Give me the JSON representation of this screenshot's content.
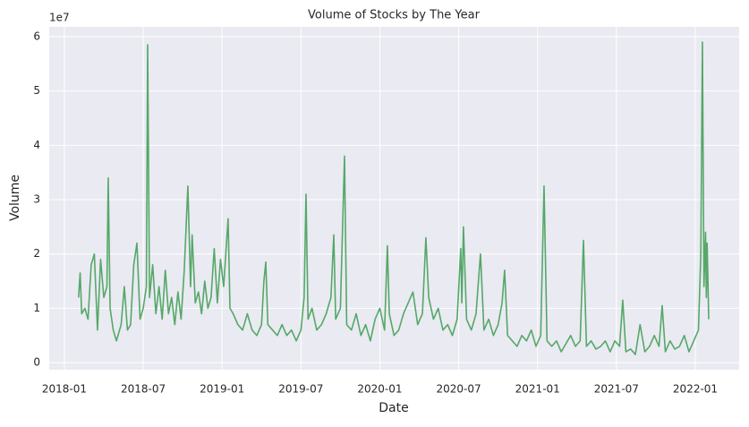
{
  "chart_data": {
    "type": "line",
    "title": "Volume of Stocks by The Year",
    "x_label": "Date",
    "y_label": "Volume",
    "y_offset_label": "1e7",
    "color": "#55a868",
    "grid": true,
    "xlim": [
      2017.904,
      2022.278
    ],
    "ylim": [
      -1300000,
      61800000
    ],
    "xticks": [
      {
        "value": 2018.0,
        "label": "2018-01"
      },
      {
        "value": 2018.5,
        "label": "2018-07"
      },
      {
        "value": 2019.0,
        "label": "2019-01"
      },
      {
        "value": 2019.5,
        "label": "2019-07"
      },
      {
        "value": 2020.0,
        "label": "2020-01"
      },
      {
        "value": 2020.5,
        "label": "2020-07"
      },
      {
        "value": 2021.0,
        "label": "2021-01"
      },
      {
        "value": 2021.5,
        "label": "2021-07"
      },
      {
        "value": 2022.0,
        "label": "2022-01"
      }
    ],
    "yticks": [
      {
        "value": 0,
        "label": "0"
      },
      {
        "value": 10000000,
        "label": "1"
      },
      {
        "value": 20000000,
        "label": "2"
      },
      {
        "value": 30000000,
        "label": "3"
      },
      {
        "value": 40000000,
        "label": "4"
      },
      {
        "value": 50000000,
        "label": "5"
      },
      {
        "value": 60000000,
        "label": "6"
      }
    ],
    "x": [
      2018.09,
      2018.1,
      2018.11,
      2018.13,
      2018.15,
      2018.17,
      2018.19,
      2018.21,
      2018.23,
      2018.25,
      2018.27,
      2018.278,
      2018.29,
      2018.31,
      2018.33,
      2018.36,
      2018.38,
      2018.4,
      2018.42,
      2018.44,
      2018.46,
      2018.48,
      2018.5,
      2018.52,
      2018.528,
      2018.54,
      2018.56,
      2018.58,
      2018.6,
      2018.62,
      2018.64,
      2018.66,
      2018.68,
      2018.7,
      2018.72,
      2018.74,
      2018.76,
      2018.783,
      2018.8,
      2018.81,
      2018.83,
      2018.85,
      2018.87,
      2018.89,
      2018.91,
      2018.93,
      2018.95,
      2018.97,
      2018.99,
      2019.01,
      2019.038,
      2019.05,
      2019.07,
      2019.1,
      2019.13,
      2019.16,
      2019.19,
      2019.22,
      2019.25,
      2019.265,
      2019.277,
      2019.29,
      2019.32,
      2019.35,
      2019.38,
      2019.41,
      2019.44,
      2019.47,
      2019.5,
      2019.52,
      2019.532,
      2019.545,
      2019.57,
      2019.6,
      2019.63,
      2019.66,
      2019.69,
      2019.708,
      2019.72,
      2019.75,
      2019.776,
      2019.79,
      2019.82,
      2019.85,
      2019.88,
      2019.91,
      2019.94,
      2019.97,
      2020.0,
      2020.03,
      2020.048,
      2020.06,
      2020.09,
      2020.12,
      2020.15,
      2020.18,
      2020.21,
      2020.24,
      2020.27,
      2020.292,
      2020.31,
      2020.34,
      2020.37,
      2020.4,
      2020.43,
      2020.46,
      2020.49,
      2020.513,
      2020.52,
      2020.53,
      2020.55,
      2020.58,
      2020.61,
      2020.638,
      2020.66,
      2020.69,
      2020.72,
      2020.75,
      2020.775,
      2020.791,
      2020.81,
      2020.84,
      2020.87,
      2020.9,
      2020.93,
      2020.96,
      2020.99,
      2021.02,
      2021.041,
      2021.06,
      2021.09,
      2021.12,
      2021.15,
      2021.18,
      2021.21,
      2021.24,
      2021.27,
      2021.291,
      2021.31,
      2021.34,
      2021.37,
      2021.4,
      2021.43,
      2021.46,
      2021.49,
      2021.52,
      2021.54,
      2021.56,
      2021.59,
      2021.62,
      2021.65,
      2021.68,
      2021.71,
      2021.74,
      2021.77,
      2021.79,
      2021.81,
      2021.84,
      2021.87,
      2021.9,
      2021.93,
      2021.96,
      2021.99,
      2022.02,
      2022.035,
      2022.045,
      2022.055,
      2022.065,
      2022.07,
      2022.075,
      2022.085
    ],
    "values": [
      12000000,
      16500000,
      9000000,
      10000000,
      8000000,
      18000000,
      20000000,
      6000000,
      19000000,
      12000000,
      14000000,
      34000000,
      10000000,
      6000000,
      4000000,
      7000000,
      14000000,
      6000000,
      7000000,
      18000000,
      22000000,
      8000000,
      10000000,
      14000000,
      58500000,
      12000000,
      18000000,
      9000000,
      14000000,
      8000000,
      17000000,
      9000000,
      12000000,
      7000000,
      13000000,
      8000000,
      17000000,
      32500000,
      14000000,
      23500000,
      11000000,
      13000000,
      9000000,
      15000000,
      10000000,
      12000000,
      21000000,
      11000000,
      19000000,
      14000000,
      26500000,
      10000000,
      9000000,
      7000000,
      6000000,
      9000000,
      6000000,
      5000000,
      7000000,
      15000000,
      18500000,
      7000000,
      6000000,
      5000000,
      7000000,
      5000000,
      6000000,
      4000000,
      6000000,
      12000000,
      31000000,
      8000000,
      10000000,
      6000000,
      7000000,
      9000000,
      12000000,
      23500000,
      8000000,
      10000000,
      38000000,
      7000000,
      6000000,
      9000000,
      5000000,
      7000000,
      4000000,
      8000000,
      10000000,
      6000000,
      21500000,
      9000000,
      5000000,
      6000000,
      9000000,
      11000000,
      13000000,
      7000000,
      9000000,
      23000000,
      12000000,
      8000000,
      10000000,
      6000000,
      7000000,
      5000000,
      8000000,
      21000000,
      11000000,
      25000000,
      8000000,
      6000000,
      9000000,
      20000000,
      6000000,
      8000000,
      5000000,
      7000000,
      11000000,
      17000000,
      5000000,
      4000000,
      3000000,
      5000000,
      4000000,
      6000000,
      3000000,
      5000000,
      32500000,
      4000000,
      3000000,
      4000000,
      2000000,
      3500000,
      5000000,
      3000000,
      4000000,
      22500000,
      3000000,
      4000000,
      2500000,
      3000000,
      4000000,
      2000000,
      4000000,
      3000000,
      11500000,
      2000000,
      2500000,
      1500000,
      7000000,
      2000000,
      3000000,
      5000000,
      3000000,
      10500000,
      2000000,
      4000000,
      2500000,
      3000000,
      5000000,
      2000000,
      4000000,
      6000000,
      20000000,
      59000000,
      14000000,
      24000000,
      12000000,
      22000000,
      8000000
    ]
  }
}
